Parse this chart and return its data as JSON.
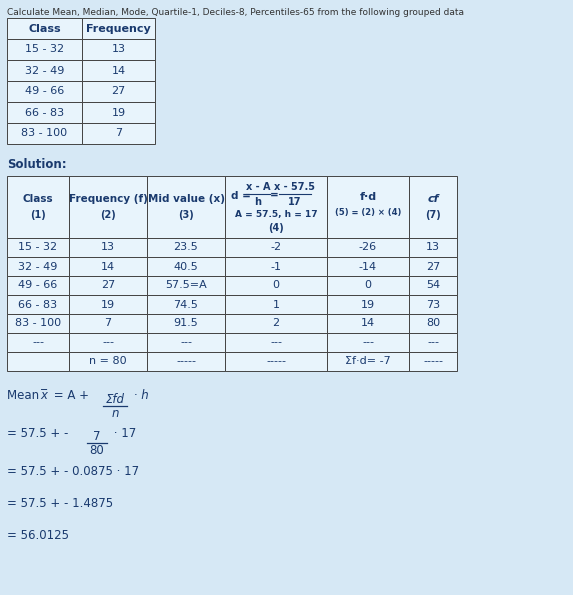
{
  "bg_color": "#d6e8f5",
  "title_text": "Calculate Mean, Median, Mode, Quartile-1, Deciles-8, Percentiles-65 from the following grouped data",
  "initial_table": {
    "headers": [
      "Class",
      "Frequency"
    ],
    "rows": [
      [
        "15 - 32",
        "13"
      ],
      [
        "32 - 49",
        "14"
      ],
      [
        "49 - 66",
        "27"
      ],
      [
        "66 - 83",
        "19"
      ],
      [
        "83 - 100",
        "7"
      ]
    ]
  },
  "solution_label": "Solution:",
  "main_col_headers": [
    [
      "Class",
      "(1)"
    ],
    [
      "Frequency (f)",
      "(2)"
    ],
    [
      "Mid value (x)",
      "(3)"
    ],
    [
      "d_formula",
      "A = 57.5, h = 17",
      "(4)"
    ],
    [
      "f·d",
      "(5) = (2) × (4)"
    ],
    [
      "cf",
      "(7)"
    ]
  ],
  "main_rows": [
    [
      "15 - 32",
      "13",
      "23.5",
      "-2",
      "-26",
      "13"
    ],
    [
      "32 - 49",
      "14",
      "40.5",
      "-1",
      "-14",
      "27"
    ],
    [
      "49 - 66",
      "27",
      "57.5=A",
      "0",
      "0",
      "54"
    ],
    [
      "66 - 83",
      "19",
      "74.5",
      "1",
      "19",
      "73"
    ],
    [
      "83 - 100",
      "7",
      "91.5",
      "2",
      "14",
      "80"
    ],
    [
      "---",
      "---",
      "---",
      "---",
      "---",
      "---"
    ],
    [
      "",
      "n = 80",
      "-----",
      "-----",
      "Σf·d= -7",
      "-----"
    ]
  ],
  "text_color": "#1a3a6e",
  "border_color": "#444444",
  "cell_bg": "#e8f4fc"
}
